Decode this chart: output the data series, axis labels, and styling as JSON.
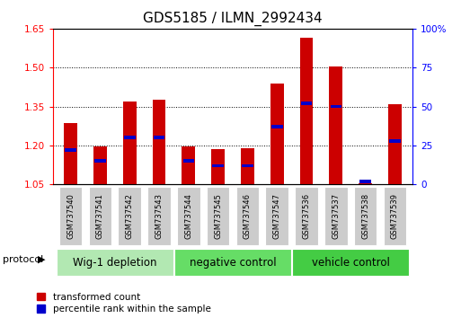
{
  "title": "GDS5185 / ILMN_2992434",
  "samples": [
    "GSM737540",
    "GSM737541",
    "GSM737542",
    "GSM737543",
    "GSM737544",
    "GSM737545",
    "GSM737546",
    "GSM737547",
    "GSM737536",
    "GSM737537",
    "GSM737538",
    "GSM737539"
  ],
  "red_values": [
    1.285,
    1.195,
    1.37,
    1.375,
    1.195,
    1.185,
    1.19,
    1.44,
    1.615,
    1.505,
    1.055,
    1.36
  ],
  "blue_pcts": [
    22,
    15,
    30,
    30,
    15,
    12,
    12,
    37,
    52,
    50,
    2,
    28
  ],
  "ymin": 1.05,
  "ymax": 1.65,
  "y_ticks_left": [
    1.05,
    1.2,
    1.35,
    1.5,
    1.65
  ],
  "y_ticks_right_vals": [
    0,
    25,
    50,
    75,
    100
  ],
  "y_ticks_right_labels": [
    "0",
    "25",
    "50",
    "75",
    "100%"
  ],
  "groups": [
    {
      "label": "Wig-1 depletion",
      "start": 0,
      "end": 3,
      "color": "#b2e8b2"
    },
    {
      "label": "negative control",
      "start": 4,
      "end": 7,
      "color": "#66dd66"
    },
    {
      "label": "vehicle control",
      "start": 8,
      "end": 11,
      "color": "#44cc44"
    }
  ],
  "bar_width": 0.45,
  "red_color": "#cc0000",
  "blue_color": "#0000cc",
  "background_color": "#ffffff",
  "sample_box_color": "#cccccc",
  "legend_red": "transformed count",
  "legend_blue": "percentile rank within the sample",
  "protocol_label": "protocol",
  "title_fontsize": 11,
  "tick_fontsize": 7.5,
  "sample_fontsize": 6.0,
  "legend_fontsize": 7.5,
  "group_fontsize": 8.5
}
